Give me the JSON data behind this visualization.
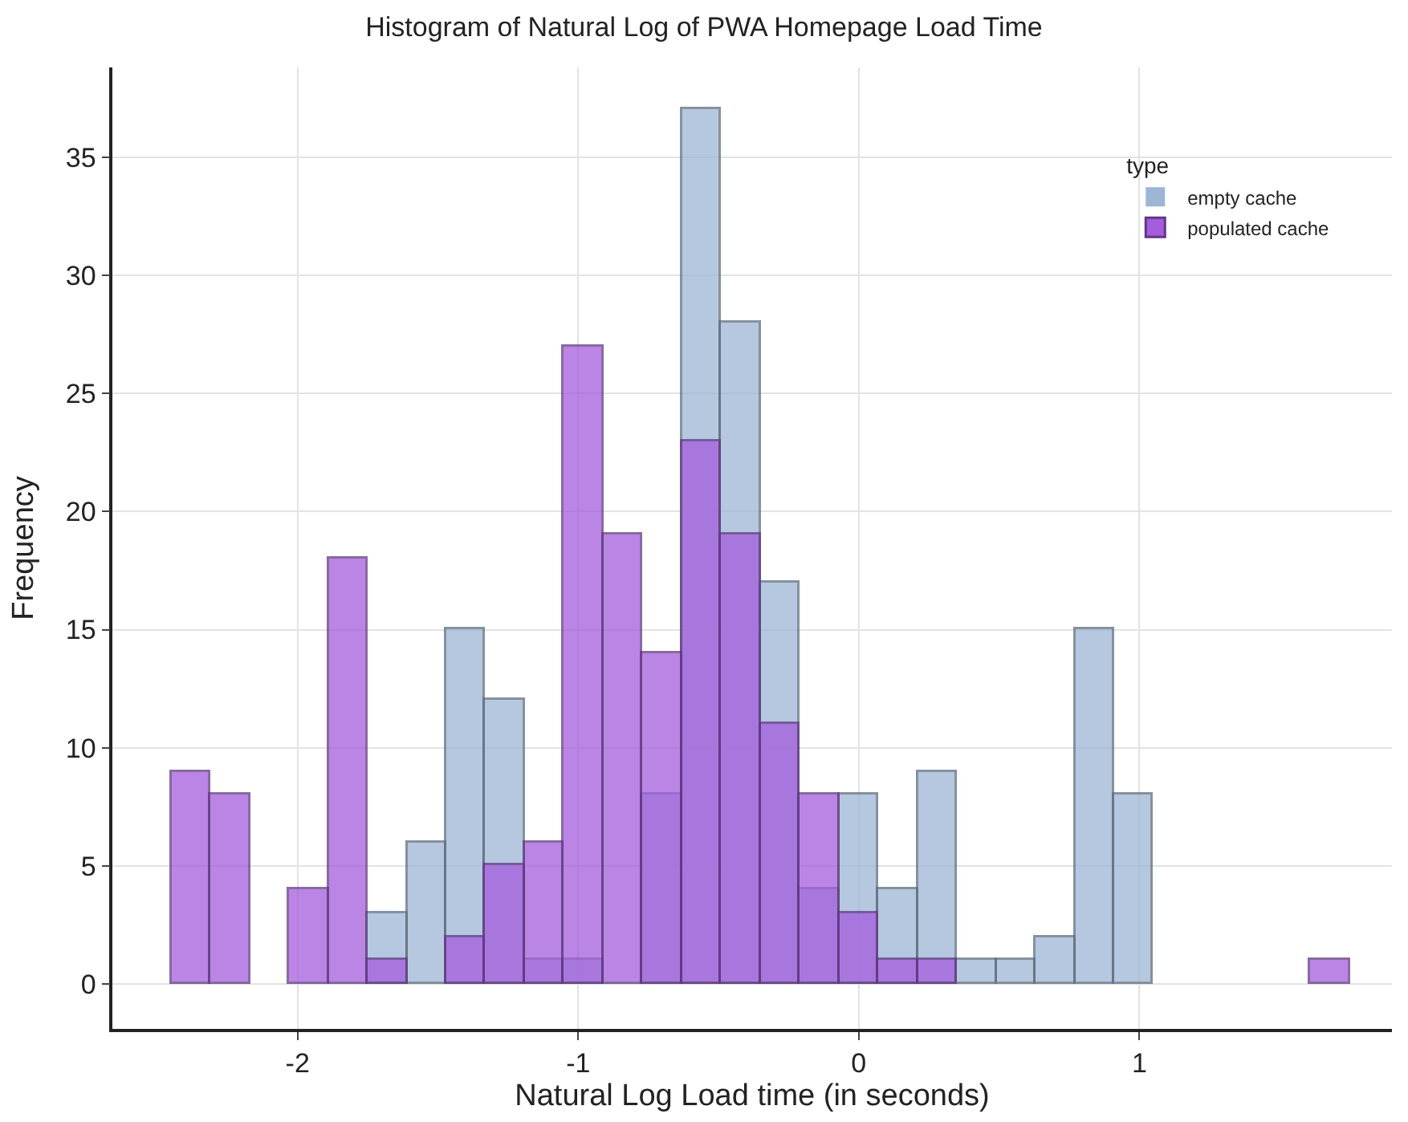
{
  "chart_data": {
    "type": "histogram",
    "title": "Histogram of Natural Log of PWA Homepage Load Time",
    "xlabel": "Natural Log Load time (in seconds)",
    "ylabel": "Frequency",
    "legend_title": "type",
    "bins": [
      -2.45,
      -2.31,
      -2.17,
      -2.03,
      -1.89,
      -1.75,
      -1.61,
      -1.47,
      -1.33,
      -1.19,
      -1.05,
      -0.91,
      -0.77,
      -0.63,
      -0.49,
      -0.35,
      -0.21,
      -0.07,
      0.07,
      0.21,
      0.35,
      0.49,
      0.63,
      0.77,
      0.91,
      1.05,
      1.19,
      1.33,
      1.47,
      1.61,
      1.75
    ],
    "series": [
      {
        "name": "empty cache",
        "color": "#9db6d6",
        "values": [
          0,
          0,
          0,
          0,
          0,
          3,
          6,
          15,
          12,
          1,
          1,
          0,
          8,
          37,
          28,
          17,
          4,
          8,
          4,
          9,
          1,
          1,
          2,
          15,
          8,
          0,
          0,
          0,
          0,
          0
        ]
      },
      {
        "name": "populated cache",
        "color": "#a45ddc",
        "values": [
          9,
          8,
          0,
          4,
          18,
          1,
          0,
          2,
          5,
          6,
          27,
          19,
          14,
          23,
          19,
          11,
          8,
          3,
          1,
          1,
          0,
          0,
          0,
          0,
          0,
          0,
          0,
          0,
          0,
          1
        ]
      }
    ],
    "xlim": [
      -2.66,
      1.9
    ],
    "ylim": [
      -1.9,
      38.8
    ],
    "xticks": [
      -2,
      -1,
      0,
      1
    ],
    "yticks": [
      0,
      5,
      10,
      15,
      20,
      25,
      30,
      35
    ],
    "grid": true,
    "legend": "top right"
  }
}
